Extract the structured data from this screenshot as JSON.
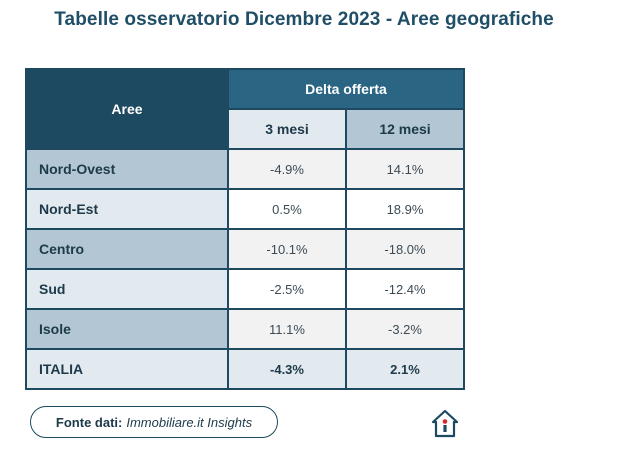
{
  "title": "Tabelle osservatorio Dicembre 2023 - Aree geografiche",
  "table": {
    "header_area": "Aree",
    "header_group": "Delta offerta",
    "sub_headers": [
      "3 mesi",
      "12 mesi"
    ],
    "rows": [
      {
        "area": "Nord-Ovest",
        "m3": "-4.9%",
        "m12": "14.1%"
      },
      {
        "area": "Nord-Est",
        "m3": "0.5%",
        "m12": "18.9%"
      },
      {
        "area": "Centro",
        "m3": "-10.1%",
        "m12": "-18.0%"
      },
      {
        "area": "Sud",
        "m3": "-2.5%",
        "m12": "-12.4%"
      },
      {
        "area": "Isole",
        "m3": "11.1%",
        "m12": "-3.2%"
      },
      {
        "area": "ITALIA",
        "m3": "-4.3%",
        "m12": "2.1%"
      }
    ]
  },
  "footer": {
    "label": "Fonte dati:",
    "source": "Immobiliare.it Insights"
  },
  "logo_icon": "house-logo-icon",
  "colors": {
    "primary": "#1d4a60",
    "accent": "#2b6584",
    "logo_red": "#d9262a"
  }
}
